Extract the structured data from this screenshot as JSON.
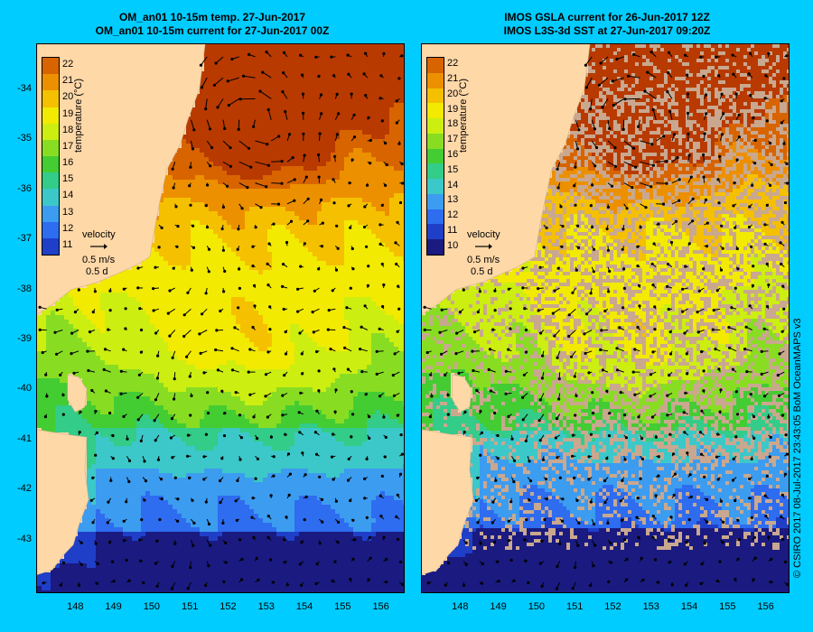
{
  "left_panel": {
    "title_line1": "OM_an01 10-15m temp. 27-Jun-2017",
    "title_line2": "OM_an01 10-15m current for 27-Jun-2017 00Z",
    "colorbar_ticks": [
      "22",
      "21",
      "20",
      "19",
      "18",
      "17",
      "16",
      "15",
      "14",
      "13",
      "12",
      "11"
    ],
    "colorbar_label": "temperature (°C)",
    "velocity_title": "velocity",
    "velocity_scale": "0.5 m/s",
    "velocity_time": "0.5 d"
  },
  "right_panel": {
    "title_line1": "IMOS GSLA current for 26-Jun-2017 12Z",
    "title_line2": "IMOS L3S-3d SST at 27-Jun-2017 09:20Z",
    "colorbar_ticks": [
      "22",
      "21",
      "20",
      "19",
      "18",
      "17",
      "16",
      "15",
      "14",
      "13",
      "12",
      "11",
      "10"
    ],
    "colorbar_label": "temperature (°C)",
    "velocity_title": "velocity",
    "velocity_scale": "0.5 m/s",
    "velocity_time": "0.5 d"
  },
  "lat_labels": [
    "-34",
    "-35",
    "-36",
    "-37",
    "-38",
    "-39",
    "-40",
    "-41",
    "-42",
    "-43"
  ],
  "lon_labels": [
    "148",
    "149",
    "150",
    "151",
    "152",
    "153",
    "154",
    "155",
    "156"
  ],
  "credit": "© CSIRO 2017   08-Jul-2017 23:43:05 BoM OceanMAPS v3",
  "colors": {
    "background": "#00ccff",
    "land": "#ffd8a8",
    "missing_data": "#c9a88f"
  }
}
